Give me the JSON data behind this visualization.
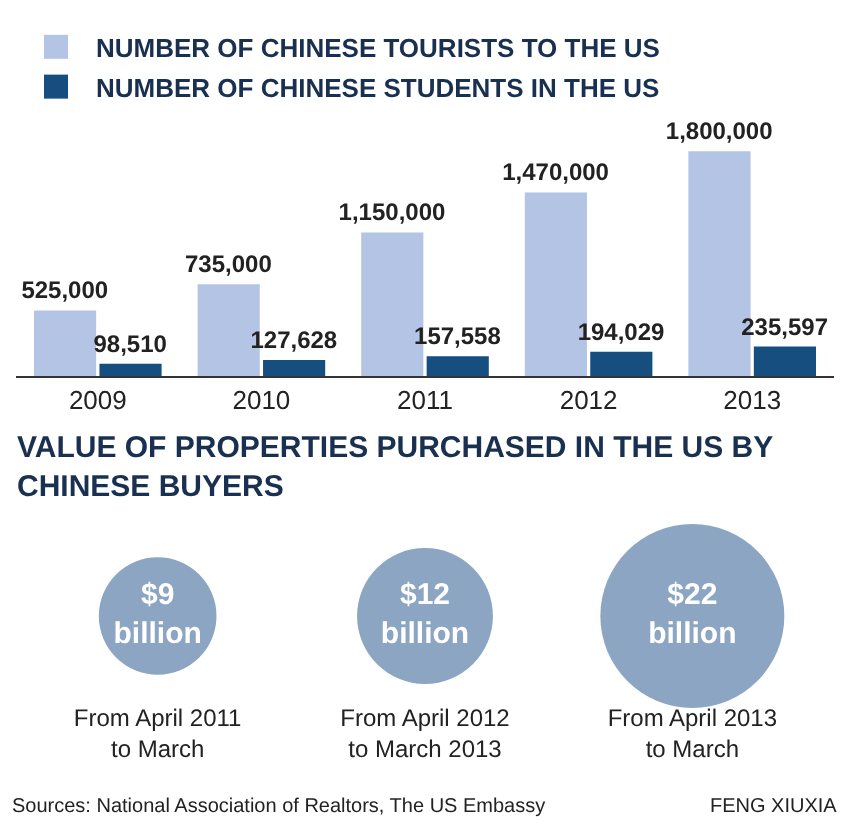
{
  "chart_data": [
    {
      "type": "bar",
      "categories": [
        "2009",
        "2010",
        "2011",
        "2012",
        "2013"
      ],
      "series": [
        {
          "name": "NUMBER OF CHINESE TOURISTS TO THE US",
          "color": "#b4c4e4",
          "values": [
            525000,
            735000,
            1150000,
            1470000,
            1800000
          ],
          "value_labels": [
            "525,000",
            "735,000",
            "1,150,000",
            "1,470,000",
            "1,800,000"
          ]
        },
        {
          "name": "NUMBER OF CHINESE STUDENTS IN THE US",
          "color": "#174e80",
          "values": [
            98510,
            127628,
            157558,
            194029,
            235597
          ],
          "value_labels": [
            "98,510",
            "127,628",
            "157,558",
            "194,029",
            "235,597"
          ]
        }
      ],
      "data_labels": true,
      "legend": "top left",
      "grid": false
    },
    {
      "type": "other",
      "title": "VALUE OF PROPERTIES PURCHASED IN THE US BY CHINESE BUYERS",
      "categories": [
        "From April 2011 to March",
        "From April 2012 to March 2013",
        "From April 2013 to March"
      ],
      "values": [
        9,
        12,
        22
      ],
      "value_labels": [
        "$9 billion",
        "$12 billion",
        "$22 billion"
      ],
      "color": "#5b7fa8",
      "annotations": [
        "Sources: National Association of Realtors, The US Embassy",
        "FENG XIUXIA"
      ]
    }
  ]
}
